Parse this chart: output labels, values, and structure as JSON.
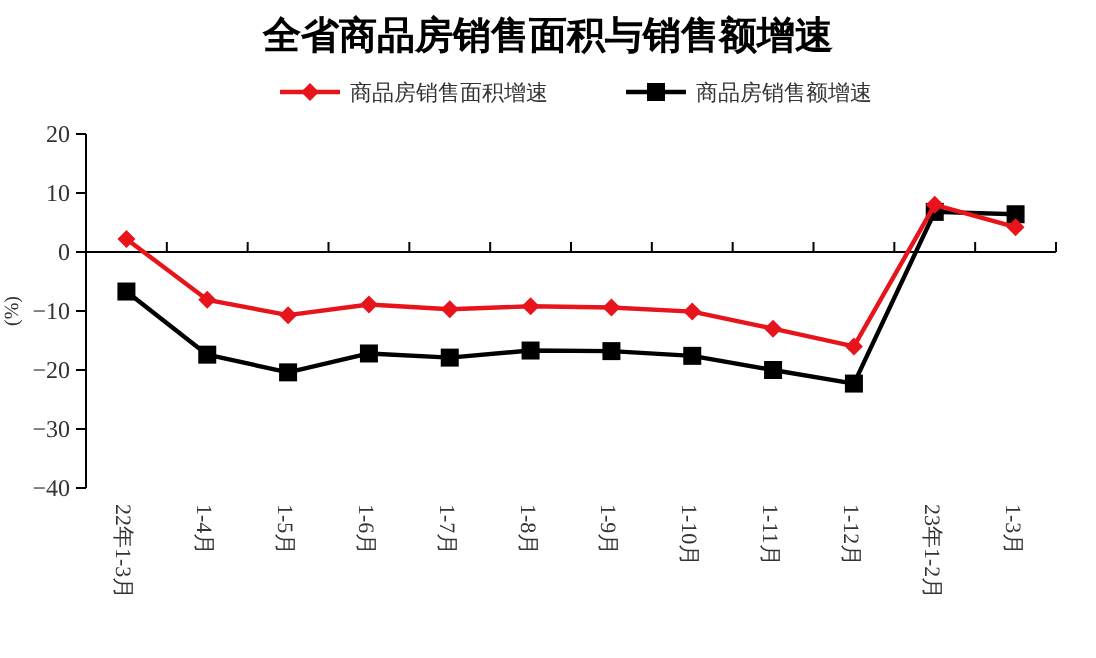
{
  "chart_data": {
    "type": "line",
    "title": "全省商品房销售面积与销售额增速",
    "ylabel": "(%)",
    "categories": [
      "22年1-3月",
      "1-4月",
      "1-5月",
      "1-6月",
      "1-7月",
      "1-8月",
      "1-9月",
      "1-10月",
      "1-11月",
      "1-12月",
      "23年1-2月",
      "1-3月"
    ],
    "series": [
      {
        "name": "商品房销售面积增速",
        "color": "#e8141c",
        "marker": "diamond",
        "values": [
          2.2,
          -8.1,
          -10.7,
          -8.9,
          -9.7,
          -9.2,
          -9.4,
          -10.1,
          -13.0,
          -16.0,
          8.0,
          4.2
        ]
      },
      {
        "name": "商品房销售额增速",
        "color": "#000000",
        "marker": "square",
        "values": [
          -6.7,
          -17.4,
          -20.4,
          -17.2,
          -17.9,
          -16.7,
          -16.8,
          -17.6,
          -20.0,
          -22.3,
          6.8,
          6.4
        ]
      }
    ],
    "ylim": [
      -40,
      20
    ],
    "yticks": [
      -40,
      -30,
      -20,
      -10,
      0,
      10,
      20
    ],
    "legend": "top",
    "line_style": "solid"
  }
}
